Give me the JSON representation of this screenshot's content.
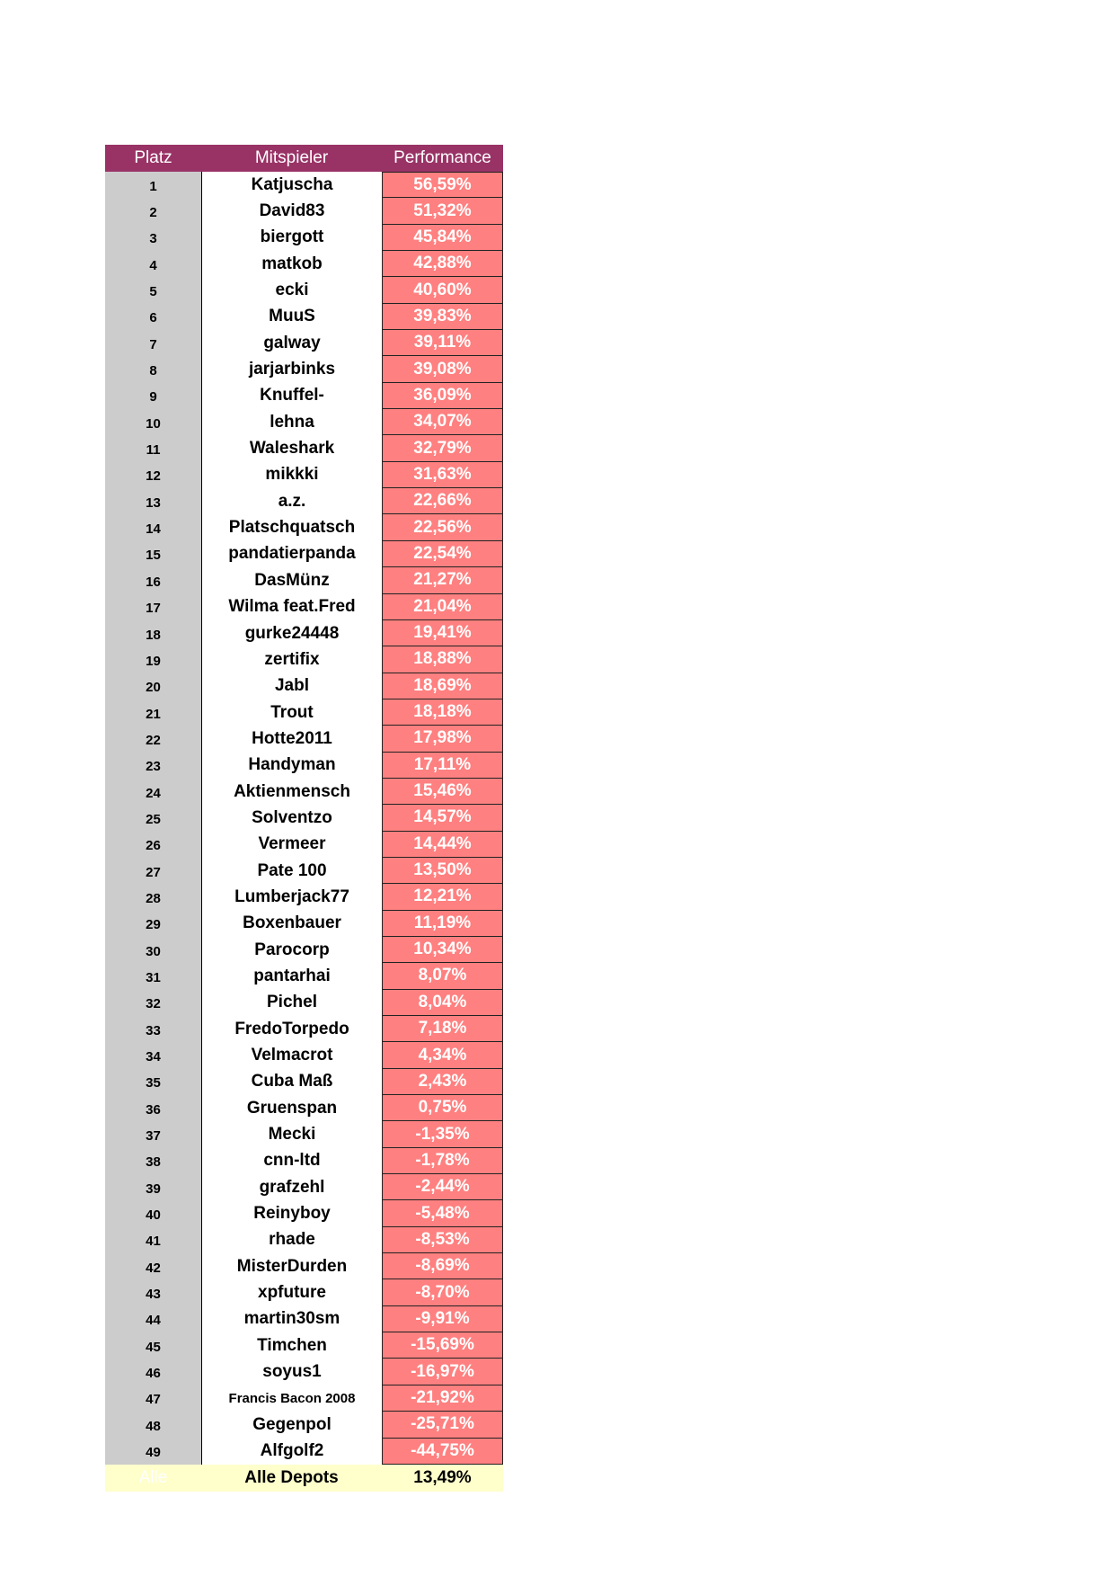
{
  "header": {
    "platz": "Platz",
    "mitspieler": "Mitspieler",
    "performance": "Performance"
  },
  "colors": {
    "header_bg": "#993366",
    "rank_bg": "#cccccc",
    "performance_bg": "#ff8080",
    "footer_bg": "#ffffcc"
  },
  "rows": [
    {
      "rank": "1",
      "name": "Katjuscha",
      "perf": "56,59%"
    },
    {
      "rank": "2",
      "name": "David83",
      "perf": "51,32%"
    },
    {
      "rank": "3",
      "name": "biergott",
      "perf": "45,84%"
    },
    {
      "rank": "4",
      "name": "matkob",
      "perf": "42,88%"
    },
    {
      "rank": "5",
      "name": "ecki",
      "perf": "40,60%"
    },
    {
      "rank": "6",
      "name": "MuuS",
      "perf": "39,83%"
    },
    {
      "rank": "7",
      "name": "galway",
      "perf": "39,11%"
    },
    {
      "rank": "8",
      "name": "jarjarbinks",
      "perf": "39,08%"
    },
    {
      "rank": "9",
      "name": "Knuffel-",
      "perf": "36,09%"
    },
    {
      "rank": "10",
      "name": "lehna",
      "perf": "34,07%"
    },
    {
      "rank": "11",
      "name": "Waleshark",
      "perf": "32,79%"
    },
    {
      "rank": "12",
      "name": "mikkki",
      "perf": "31,63%"
    },
    {
      "rank": "13",
      "name": "a.z.",
      "perf": "22,66%"
    },
    {
      "rank": "14",
      "name": "Platschquatsch",
      "perf": "22,56%"
    },
    {
      "rank": "15",
      "name": "pandatierpanda",
      "perf": "22,54%"
    },
    {
      "rank": "16",
      "name": "DasMünz",
      "perf": "21,27%"
    },
    {
      "rank": "17",
      "name": "Wilma feat.Fred",
      "perf": "21,04%"
    },
    {
      "rank": "18",
      "name": "gurke24448",
      "perf": "19,41%"
    },
    {
      "rank": "19",
      "name": "zertifix",
      "perf": "18,88%"
    },
    {
      "rank": "20",
      "name": "Jabl",
      "perf": "18,69%"
    },
    {
      "rank": "21",
      "name": "Trout",
      "perf": "18,18%"
    },
    {
      "rank": "22",
      "name": "Hotte2011",
      "perf": "17,98%"
    },
    {
      "rank": "23",
      "name": "Handyman",
      "perf": "17,11%"
    },
    {
      "rank": "24",
      "name": "Aktienmensch",
      "perf": "15,46%"
    },
    {
      "rank": "25",
      "name": "Solventzo",
      "perf": "14,57%"
    },
    {
      "rank": "26",
      "name": "Vermeer",
      "perf": "14,44%"
    },
    {
      "rank": "27",
      "name": "Pate 100",
      "perf": "13,50%"
    },
    {
      "rank": "28",
      "name": "Lumberjack77",
      "perf": "12,21%"
    },
    {
      "rank": "29",
      "name": "Boxenbauer",
      "perf": "11,19%"
    },
    {
      "rank": "30",
      "name": "Parocorp",
      "perf": "10,34%"
    },
    {
      "rank": "31",
      "name": "pantarhai",
      "perf": "8,07%"
    },
    {
      "rank": "32",
      "name": "Pichel",
      "perf": "8,04%"
    },
    {
      "rank": "33",
      "name": "FredoTorpedo",
      "perf": "7,18%"
    },
    {
      "rank": "34",
      "name": "Velmacrot",
      "perf": "4,34%"
    },
    {
      "rank": "35",
      "name": "Cuba Maß",
      "perf": "2,43%"
    },
    {
      "rank": "36",
      "name": "Gruenspan",
      "perf": "0,75%"
    },
    {
      "rank": "37",
      "name": "Mecki",
      "perf": "-1,35%"
    },
    {
      "rank": "38",
      "name": "cnn-ltd",
      "perf": "-1,78%"
    },
    {
      "rank": "39",
      "name": "grafzehl",
      "perf": "-2,44%"
    },
    {
      "rank": "40",
      "name": "Reinyboy",
      "perf": "-5,48%"
    },
    {
      "rank": "41",
      "name": "rhade",
      "perf": "-8,53%"
    },
    {
      "rank": "42",
      "name": "MisterDurden",
      "perf": "-8,69%"
    },
    {
      "rank": "43",
      "name": "xpfuture",
      "perf": "-8,70%"
    },
    {
      "rank": "44",
      "name": "martin30sm",
      "perf": "-9,91%"
    },
    {
      "rank": "45",
      "name": "Timchen",
      "perf": "-15,69%"
    },
    {
      "rank": "46",
      "name": "soyus1",
      "perf": "-16,97%"
    },
    {
      "rank": "47",
      "name": "Francis Bacon 2008",
      "perf": "-21,92%"
    },
    {
      "rank": "48",
      "name": "Gegenpol",
      "perf": "-25,71%"
    },
    {
      "rank": "49",
      "name": "Alfgolf2",
      "perf": "-44,75%"
    }
  ],
  "footer": {
    "rank": "Alle",
    "name": "Alle Depots",
    "perf": "13,49%"
  }
}
